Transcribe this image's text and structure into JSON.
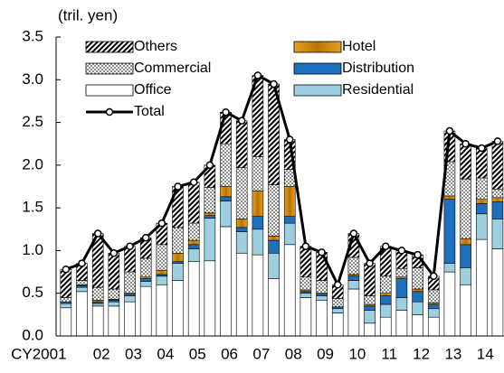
{
  "chart_data": {
    "type": "bar",
    "unit_label": "(tril. yen)",
    "categories": [
      "CY2001",
      null,
      "02",
      null,
      "03",
      null,
      "04",
      null,
      "05",
      null,
      "06",
      null,
      "07",
      null,
      "08",
      null,
      "09",
      null,
      "10",
      null,
      "11",
      null,
      "12",
      null,
      "13",
      null,
      "14",
      null
    ],
    "ylim": [
      0,
      3.5
    ],
    "yticks": [
      {
        "value": 0,
        "label": "0.0"
      },
      {
        "value": 0.5,
        "label": "0.5"
      },
      {
        "value": 1,
        "label": "1.0"
      },
      {
        "value": 1.5,
        "label": "1.5"
      },
      {
        "value": 2,
        "label": "2.0"
      },
      {
        "value": 2.5,
        "label": "2.5"
      },
      {
        "value": 3,
        "label": "3.0"
      },
      {
        "value": 3.5,
        "label": "3.5"
      }
    ],
    "stacked": true,
    "series": [
      {
        "name": "Office",
        "color": "#ffffff",
        "pattern": "solid",
        "values": [
          0.33,
          0.52,
          0.35,
          0.35,
          0.4,
          0.58,
          0.6,
          0.65,
          0.87,
          0.88,
          1.28,
          0.97,
          0.95,
          0.67,
          1.07,
          0.45,
          0.42,
          0.27,
          0.55,
          0.15,
          0.22,
          0.3,
          0.25,
          0.22,
          0.75,
          0.6,
          1.13,
          1.02
        ]
      },
      {
        "name": "Residential",
        "color": "#9dcfe0",
        "pattern": "solid",
        "values": [
          0.05,
          0.05,
          0.03,
          0.05,
          0.07,
          0.06,
          0.1,
          0.2,
          0.15,
          0.5,
          0.3,
          0.25,
          0.3,
          0.3,
          0.25,
          0.05,
          0.05,
          0.05,
          0.1,
          0.15,
          0.15,
          0.15,
          0.15,
          0.1,
          0.1,
          0.2,
          0.3,
          0.35
        ]
      },
      {
        "name": "Distribution",
        "color": "#1f6fbf",
        "pattern": "solid",
        "values": [
          0.02,
          0.02,
          0.02,
          0.02,
          0.02,
          0.03,
          0.02,
          0.02,
          0.05,
          0.03,
          0.05,
          0.05,
          0.15,
          0.15,
          0.08,
          0.02,
          0.02,
          0.02,
          0.05,
          0.05,
          0.1,
          0.22,
          0.12,
          0.05,
          0.75,
          0.27,
          0.12,
          0.2
        ]
      },
      {
        "name": "Hotel",
        "color": "#d08a00",
        "pattern": "solid",
        "values": [
          0,
          0.01,
          0.02,
          0.01,
          0.01,
          0.02,
          0.05,
          0.1,
          0.05,
          0.03,
          0.12,
          0.1,
          0.3,
          0.05,
          0.35,
          0.02,
          0.01,
          0,
          0.02,
          0.02,
          0.03,
          0.02,
          0.03,
          0.02,
          0.04,
          0.07,
          0.05,
          0.05
        ]
      },
      {
        "name": "Commercial",
        "color": "#000000",
        "pattern": "dots",
        "values": [
          0.05,
          0.05,
          0.15,
          0.12,
          0.25,
          0.22,
          0.3,
          0.3,
          0.2,
          0.3,
          0.5,
          0.6,
          0.4,
          0.6,
          0.2,
          0.15,
          0.15,
          0.1,
          0.2,
          0.1,
          0.2,
          0.1,
          0.25,
          0.15,
          0.4,
          0.7,
          0.25,
          0.1
        ]
      },
      {
        "name": "Others",
        "color": "#000000",
        "pattern": "hatch",
        "values": [
          0.33,
          0.2,
          0.63,
          0.42,
          0.3,
          0.24,
          0.25,
          0.48,
          0.48,
          0.26,
          0.37,
          0.55,
          0.95,
          1.18,
          0.35,
          0.36,
          0.33,
          0.16,
          0.28,
          0.38,
          0.35,
          0.21,
          0.15,
          0.16,
          0.36,
          0.41,
          0.35,
          0.56
        ]
      }
    ],
    "line": {
      "name": "Total",
      "color": "#000000",
      "values": [
        0.78,
        0.85,
        1.2,
        0.97,
        1.05,
        1.15,
        1.32,
        1.75,
        1.8,
        2.0,
        2.62,
        2.52,
        3.05,
        2.95,
        2.3,
        1.05,
        0.98,
        0.6,
        1.2,
        0.85,
        1.05,
        1.0,
        0.95,
        0.7,
        2.4,
        2.25,
        2.2,
        2.28
      ]
    },
    "legend_order": [
      5,
      3,
      4,
      2,
      0,
      1
    ]
  }
}
